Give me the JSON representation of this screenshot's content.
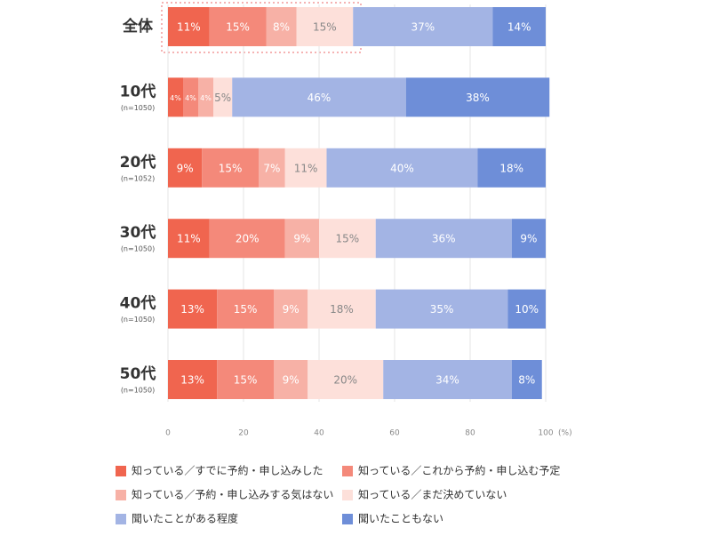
{
  "chart_data": {
    "type": "stacked-barh",
    "categories": [
      "全体",
      "10代",
      "20代",
      "30代",
      "40代",
      "50代"
    ],
    "category_notes": [
      null,
      "(n=1050)",
      "(n=1052)",
      "(n=1050)",
      "(n=1050)",
      "(n=1050)"
    ],
    "series": [
      {
        "name": "知っている／すでに予約・申し込みした",
        "color": "#f0654f",
        "values": [
          11,
          4,
          9,
          11,
          13,
          13
        ],
        "value_labels": [
          "11%",
          "4%",
          "9%",
          "11%",
          "13%",
          "13%"
        ]
      },
      {
        "name": "知っている／これから予約・申し込む予定",
        "color": "#f4897a",
        "values": [
          15,
          4,
          15,
          20,
          15,
          15
        ],
        "value_labels": [
          "15%",
          "4%",
          "15%",
          "20%",
          "15%",
          "15%"
        ]
      },
      {
        "name": "知っている／予約・申し込みする気はない",
        "color": "#f7b1a6",
        "values": [
          8,
          4,
          7,
          9,
          9,
          9
        ],
        "value_labels": [
          "8%",
          "4%",
          "7%",
          "9%",
          "9%",
          "9%"
        ]
      },
      {
        "name": "知っている／まだ決めていない",
        "color": "#fde0da",
        "values": [
          15,
          5,
          11,
          15,
          18,
          20
        ],
        "value_labels": [
          "15%",
          "5%",
          "11%",
          "15%",
          "18%",
          "20%"
        ]
      },
      {
        "name": "聞いたことがある程度",
        "color": "#a3b4e4",
        "values": [
          37,
          46,
          40,
          36,
          35,
          34
        ],
        "value_labels": [
          "37%",
          "46%",
          "40%",
          "36%",
          "35%",
          "34%"
        ]
      },
      {
        "name": "聞いたこともない",
        "color": "#6e8ed8",
        "values": [
          14,
          38,
          18,
          9,
          10,
          8
        ],
        "value_labels": [
          "14%",
          "38%",
          "18%",
          "9%",
          "10%",
          "8%"
        ]
      }
    ],
    "xlim": [
      0,
      100
    ],
    "xticks": [
      0,
      20,
      40,
      60,
      80,
      100
    ],
    "xlabel": "(%)",
    "grid": true
  }
}
